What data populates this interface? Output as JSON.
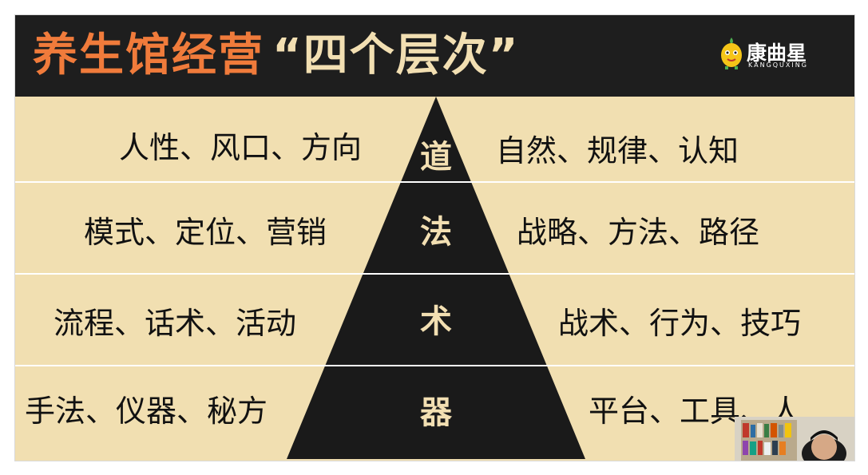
{
  "slide": {
    "title_part1": "养生馆经营",
    "title_part2": "“四个层次”",
    "logo": {
      "name": "康曲星",
      "sub": "KANGQUXING"
    },
    "levels": [
      {
        "char": "道",
        "left": "人性、风口、方向",
        "right": "自然、规律、认知"
      },
      {
        "char": "法",
        "left": "模式、定位、营销",
        "right": "战略、方法、路径"
      },
      {
        "char": "术",
        "left": "流程、话术、活动",
        "right": "战术、行为、技巧"
      },
      {
        "char": "器",
        "left": "手法、仪器、秘方",
        "right": "平台、工具、人"
      }
    ]
  },
  "colors": {
    "background": "#f1dfb1",
    "header": "#1e1e1e",
    "title_orange": "#f07b3b",
    "title_cream": "#f2dfb2",
    "pyramid": "#1a1a1a"
  }
}
